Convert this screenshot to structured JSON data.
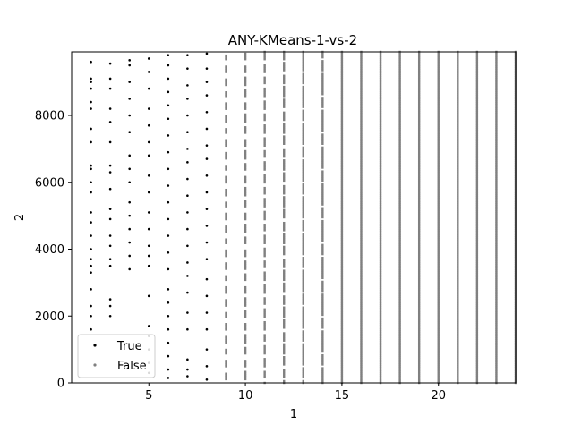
{
  "chart_data": {
    "type": "scatter",
    "title": "ANY-KMeans-1-vs-2",
    "xlabel": "1",
    "ylabel": "2",
    "xlim": [
      1,
      24
    ],
    "ylim": [
      0,
      9900
    ],
    "x_ticks": [
      5,
      10,
      15,
      20
    ],
    "y_ticks": [
      0,
      2000,
      4000,
      6000,
      8000
    ],
    "grid": false,
    "legend_position": "lower-left",
    "series": [
      {
        "name": "True",
        "color": "#000000",
        "columns": [
          {
            "x": 2,
            "y": [
              9600,
              9100,
              9000,
              8800,
              8400,
              8200,
              7600,
              7200,
              6500,
              6400,
              6000,
              5700,
              5100,
              4800,
              4400,
              4000,
              3700,
              3500,
              3300,
              2800,
              2300,
              2000,
              1600
            ]
          },
          {
            "x": 3,
            "y": [
              9550,
              9100,
              8800,
              8200,
              7800,
              7200,
              6500,
              6300,
              5800,
              5200,
              4900,
              4400,
              4100,
              3700,
              3500,
              2500,
              2300,
              2000
            ]
          },
          {
            "x": 4,
            "y": [
              9650,
              9500,
              9000,
              8500,
              8000,
              7500,
              6800,
              6400,
              6000,
              5400,
              5000,
              4600,
              4200,
              3800,
              3400
            ]
          },
          {
            "x": 5,
            "y": [
              9700,
              9300,
              8800,
              8200,
              7700,
              7200,
              6800,
              6200,
              5700,
              5100,
              4600,
              4100,
              3800,
              3500,
              2600,
              1700,
              1400,
              1000,
              600,
              300
            ]
          },
          {
            "x": 6,
            "y": [
              9800,
              9500,
              9100,
              8700,
              8300,
              7900,
              7400,
              6900,
              6400,
              5900,
              5400,
              4900,
              4400,
              3900,
              3400,
              2800,
              2400,
              2000,
              1600,
              1200,
              800,
              400,
              150
            ]
          },
          {
            "x": 7,
            "y": [
              9800,
              9400,
              8900,
              8500,
              8000,
              7500,
              7000,
              6600,
              6100,
              5600,
              5100,
              4600,
              4100,
              3600,
              3200,
              2700,
              2100,
              1600,
              700,
              400,
              200
            ]
          },
          {
            "x": 8,
            "y": [
              9850,
              9400,
              9000,
              8600,
              8100,
              7600,
              7100,
              6700,
              6200,
              5700,
              5200,
              4700,
              4200,
              3700,
              3100,
              2600,
              2100,
              1600,
              1000,
              500,
              100
            ]
          }
        ]
      },
      {
        "name": "False",
        "color": "#808080",
        "columns": [
          {
            "x": 9,
            "density": 0.55
          },
          {
            "x": 10,
            "density": 0.6
          },
          {
            "x": 11,
            "density": 0.7
          },
          {
            "x": 12,
            "density": 0.8
          },
          {
            "x": 13,
            "density": 0.88
          },
          {
            "x": 14,
            "density": 0.92
          },
          {
            "x": 15,
            "density": 0.95
          },
          {
            "x": 16,
            "density": 1.0
          },
          {
            "x": 17,
            "density": 1.0
          },
          {
            "x": 18,
            "density": 1.0
          },
          {
            "x": 19,
            "density": 1.0
          },
          {
            "x": 20,
            "density": 1.0
          },
          {
            "x": 21,
            "density": 1.0
          },
          {
            "x": 22,
            "density": 1.0
          },
          {
            "x": 23,
            "density": 1.0
          },
          {
            "x": 24,
            "density": 1.0
          }
        ]
      }
    ]
  }
}
